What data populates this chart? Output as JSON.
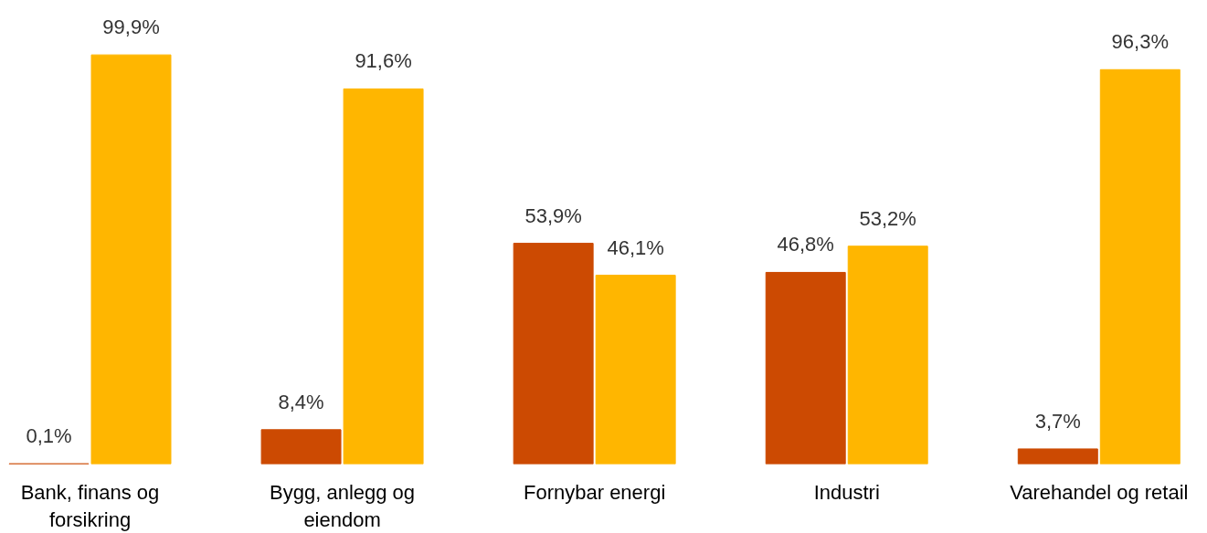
{
  "chart_data": {
    "type": "bar",
    "categories": [
      "Bank, finans og forsikring",
      "Bygg, anlegg og eiendom",
      "Fornybar energi",
      "Industri",
      "Varehandel og retail"
    ],
    "series": [
      {
        "color": "#cc4a02",
        "values": [
          0.1,
          8.4,
          53.9,
          46.8,
          3.7
        ],
        "value_labels": [
          "0,1%",
          "8,4%",
          "53,9%",
          "46,8%",
          "3,7%"
        ]
      },
      {
        "color": "#ffb600",
        "values": [
          99.9,
          91.6,
          46.1,
          53.2,
          96.3
        ],
        "value_labels": [
          "99,9%",
          "91,6%",
          "46,1%",
          "53,2%",
          "96,3%"
        ]
      }
    ],
    "grid": false,
    "tick_labels": "x"
  }
}
